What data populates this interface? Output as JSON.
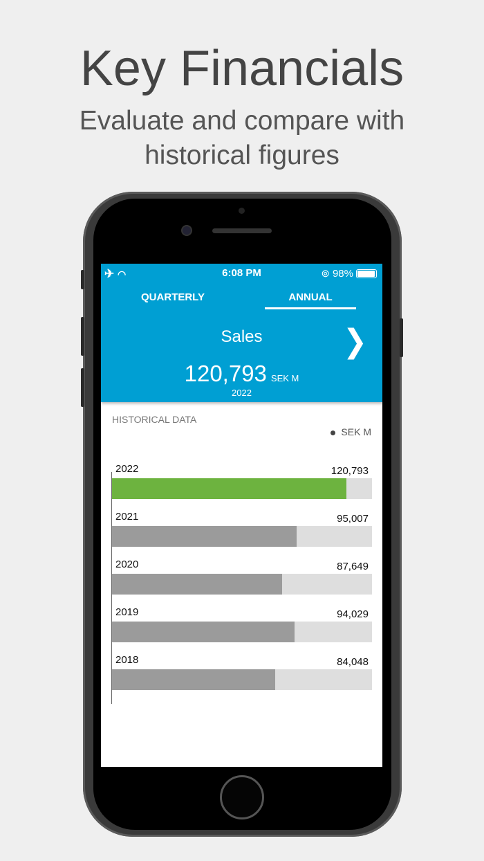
{
  "promo": {
    "title": "Key Financials",
    "subtitle_line1": "Evaluate and compare with",
    "subtitle_line2": "historical figures"
  },
  "status_bar": {
    "time": "6:08 PM",
    "battery": "98%",
    "battery_level": 0.98,
    "icons": [
      "airplane-icon",
      "wifi-icon",
      "rotation-lock-icon",
      "battery-icon"
    ]
  },
  "tabs": [
    {
      "label": "QUARTERLY",
      "active": false
    },
    {
      "label": "ANNUAL",
      "active": true
    }
  ],
  "metric": {
    "name": "Sales",
    "value": "120,793",
    "unit": "SEK M",
    "year": "2022",
    "next_icon": "chevron-right-icon"
  },
  "historical": {
    "heading": "HISTORICAL DATA",
    "legend": "SEK M"
  },
  "colors": {
    "header": "#009fd3",
    "highlight_bar": "#6db33f",
    "bar": "#9b9b9b",
    "track": "#dedede"
  },
  "chart_data": {
    "type": "bar",
    "orientation": "horizontal",
    "categories": [
      "2022",
      "2021",
      "2020",
      "2019",
      "2018"
    ],
    "values": [
      120793,
      95007,
      87649,
      94029,
      84048
    ],
    "value_labels": [
      "120,793",
      "95,007",
      "87,649",
      "94,029",
      "84,048"
    ],
    "xlim": [
      0,
      134000
    ],
    "highlight": "2022",
    "legend": "SEK M"
  }
}
